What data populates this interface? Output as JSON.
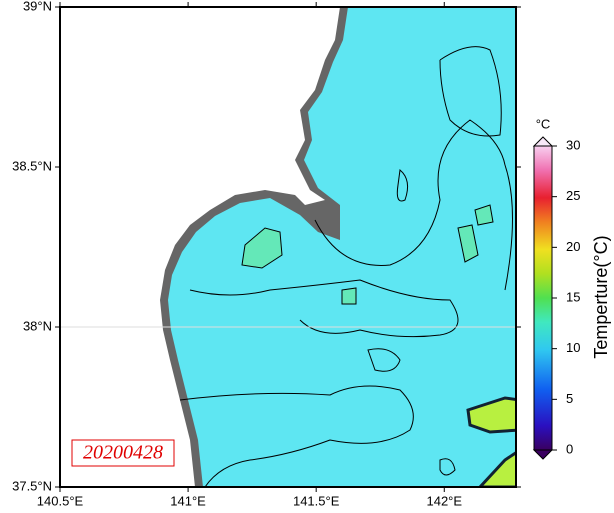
{
  "map": {
    "lonlim": [
      140.5,
      142.28
    ],
    "latlim": [
      37.5,
      39
    ],
    "xticks": [
      {
        "value": 140.5,
        "label": "140.5°E"
      },
      {
        "value": 141,
        "label": "141°E"
      },
      {
        "value": 141.5,
        "label": "141.5°E"
      },
      {
        "value": 142,
        "label": "142°E"
      }
    ],
    "yticks": [
      {
        "value": 39,
        "label": "39°N"
      },
      {
        "value": 38.5,
        "label": "38.5°N"
      },
      {
        "value": 38,
        "label": "38°N"
      },
      {
        "value": 37.5,
        "label": "37.5°N"
      }
    ],
    "date": "20200428",
    "colorbar": {
      "title": "Temperture(°C)",
      "unit": "°C",
      "lim": [
        0,
        30
      ],
      "ticks": [
        0,
        5,
        10,
        15,
        20,
        25,
        30
      ]
    }
  }
}
